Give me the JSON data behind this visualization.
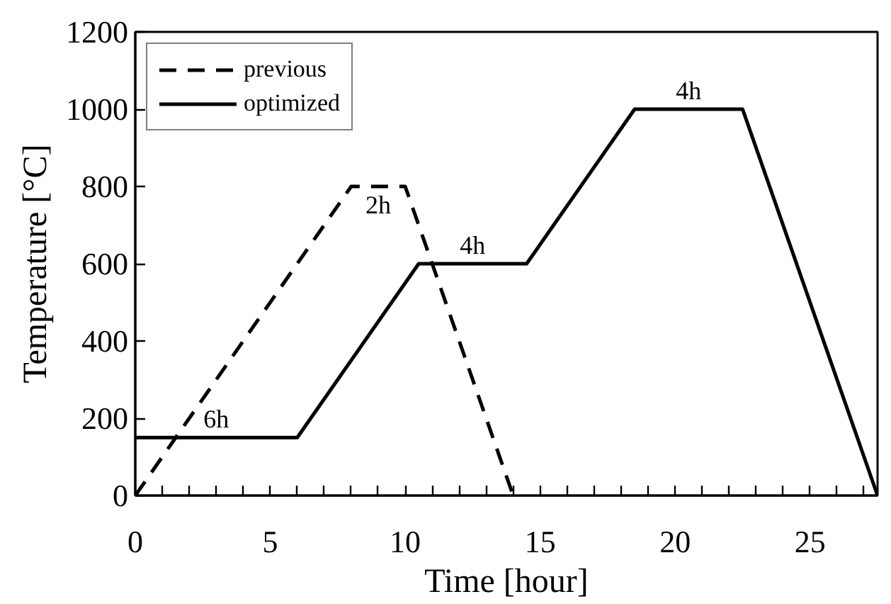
{
  "chart_data": {
    "type": "line",
    "xlabel": "Time [hour]",
    "ylabel": "Temperature [°C]",
    "xlim": [
      0,
      27.5
    ],
    "ylim": [
      0,
      1200
    ],
    "xticks": [
      0,
      {
        "value": 1,
        "label": null
      },
      {
        "value": 2,
        "label": null
      },
      {
        "value": 3,
        "label": null
      },
      {
        "value": 4,
        "label": null
      },
      5,
      {
        "value": 6,
        "label": null
      },
      {
        "value": 7,
        "label": null
      },
      {
        "value": 8,
        "label": null
      },
      {
        "value": 9,
        "label": null
      },
      10,
      {
        "value": 11,
        "label": null
      },
      {
        "value": 12,
        "label": null
      },
      {
        "value": 13,
        "label": null
      },
      {
        "value": 14,
        "label": null
      },
      15,
      {
        "value": 16,
        "label": null
      },
      {
        "value": 17,
        "label": null
      },
      {
        "value": 18,
        "label": null
      },
      {
        "value": 19,
        "label": null
      },
      20,
      {
        "value": 21,
        "label": null
      },
      {
        "value": 22,
        "label": null
      },
      {
        "value": 23,
        "label": null
      },
      {
        "value": 24,
        "label": null
      },
      25,
      {
        "value": 26,
        "label": null
      },
      {
        "value": 27,
        "label": null
      }
    ],
    "yticks": [
      0,
      200,
      400,
      600,
      800,
      1000,
      1200
    ],
    "series": [
      {
        "name": "previous",
        "color": "#000000",
        "line_style": "dashed",
        "x": [
          0,
          8,
          10,
          14
        ],
        "values": [
          0,
          800,
          800,
          0
        ]
      },
      {
        "name": "optimized",
        "color": "#000000",
        "line_style": "solid",
        "x": [
          0,
          6,
          10.5,
          14.5,
          18.5,
          22.5,
          27.5
        ],
        "values": [
          150,
          150,
          600,
          600,
          1000,
          1000,
          0
        ]
      }
    ],
    "annotations": [
      "6h",
      "2h",
      "4h",
      "4h"
    ],
    "grid": false,
    "legend": "top left",
    "marker": "none"
  }
}
